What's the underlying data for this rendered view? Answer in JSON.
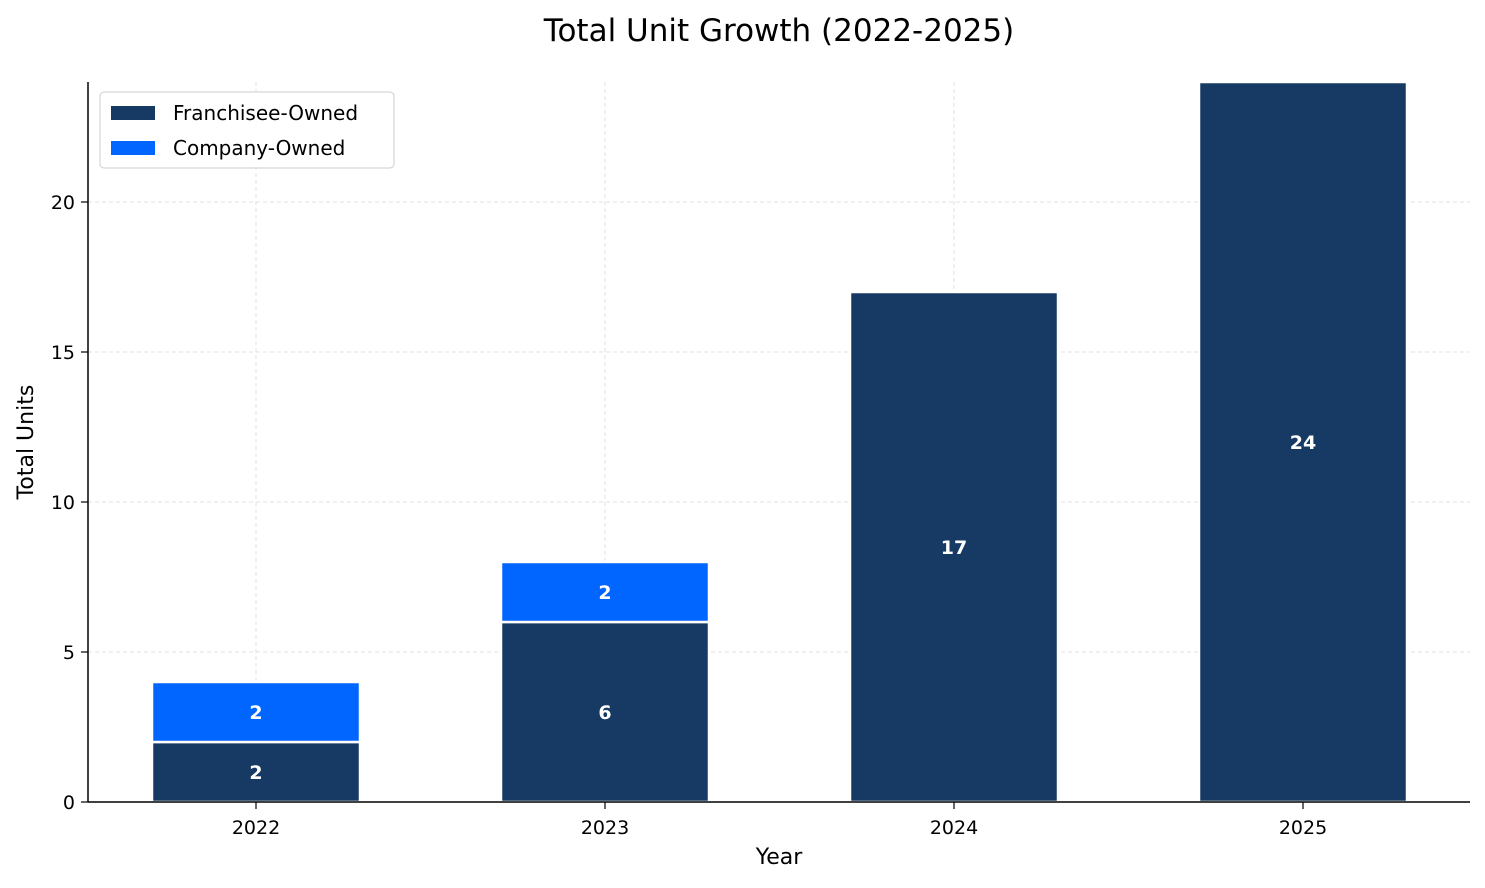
{
  "chart_data": {
    "type": "bar",
    "stacked": true,
    "title": "Total Unit Growth (2022-2025)",
    "xlabel": "Year",
    "ylabel": "Total Units",
    "categories": [
      "2022",
      "2023",
      "2024",
      "2025"
    ],
    "series": [
      {
        "name": "Franchisee-Owned",
        "values": [
          2,
          6,
          17,
          24
        ],
        "color": "#163a63"
      },
      {
        "name": "Company-Owned",
        "values": [
          2,
          2,
          0,
          0
        ],
        "color": "#0066ff"
      }
    ],
    "ylim": [
      0,
      24
    ],
    "yticks": [
      "0",
      "5",
      "10",
      "15",
      "20"
    ],
    "grid": true,
    "legend_position": "top-left",
    "label_color": "#ffffff"
  }
}
